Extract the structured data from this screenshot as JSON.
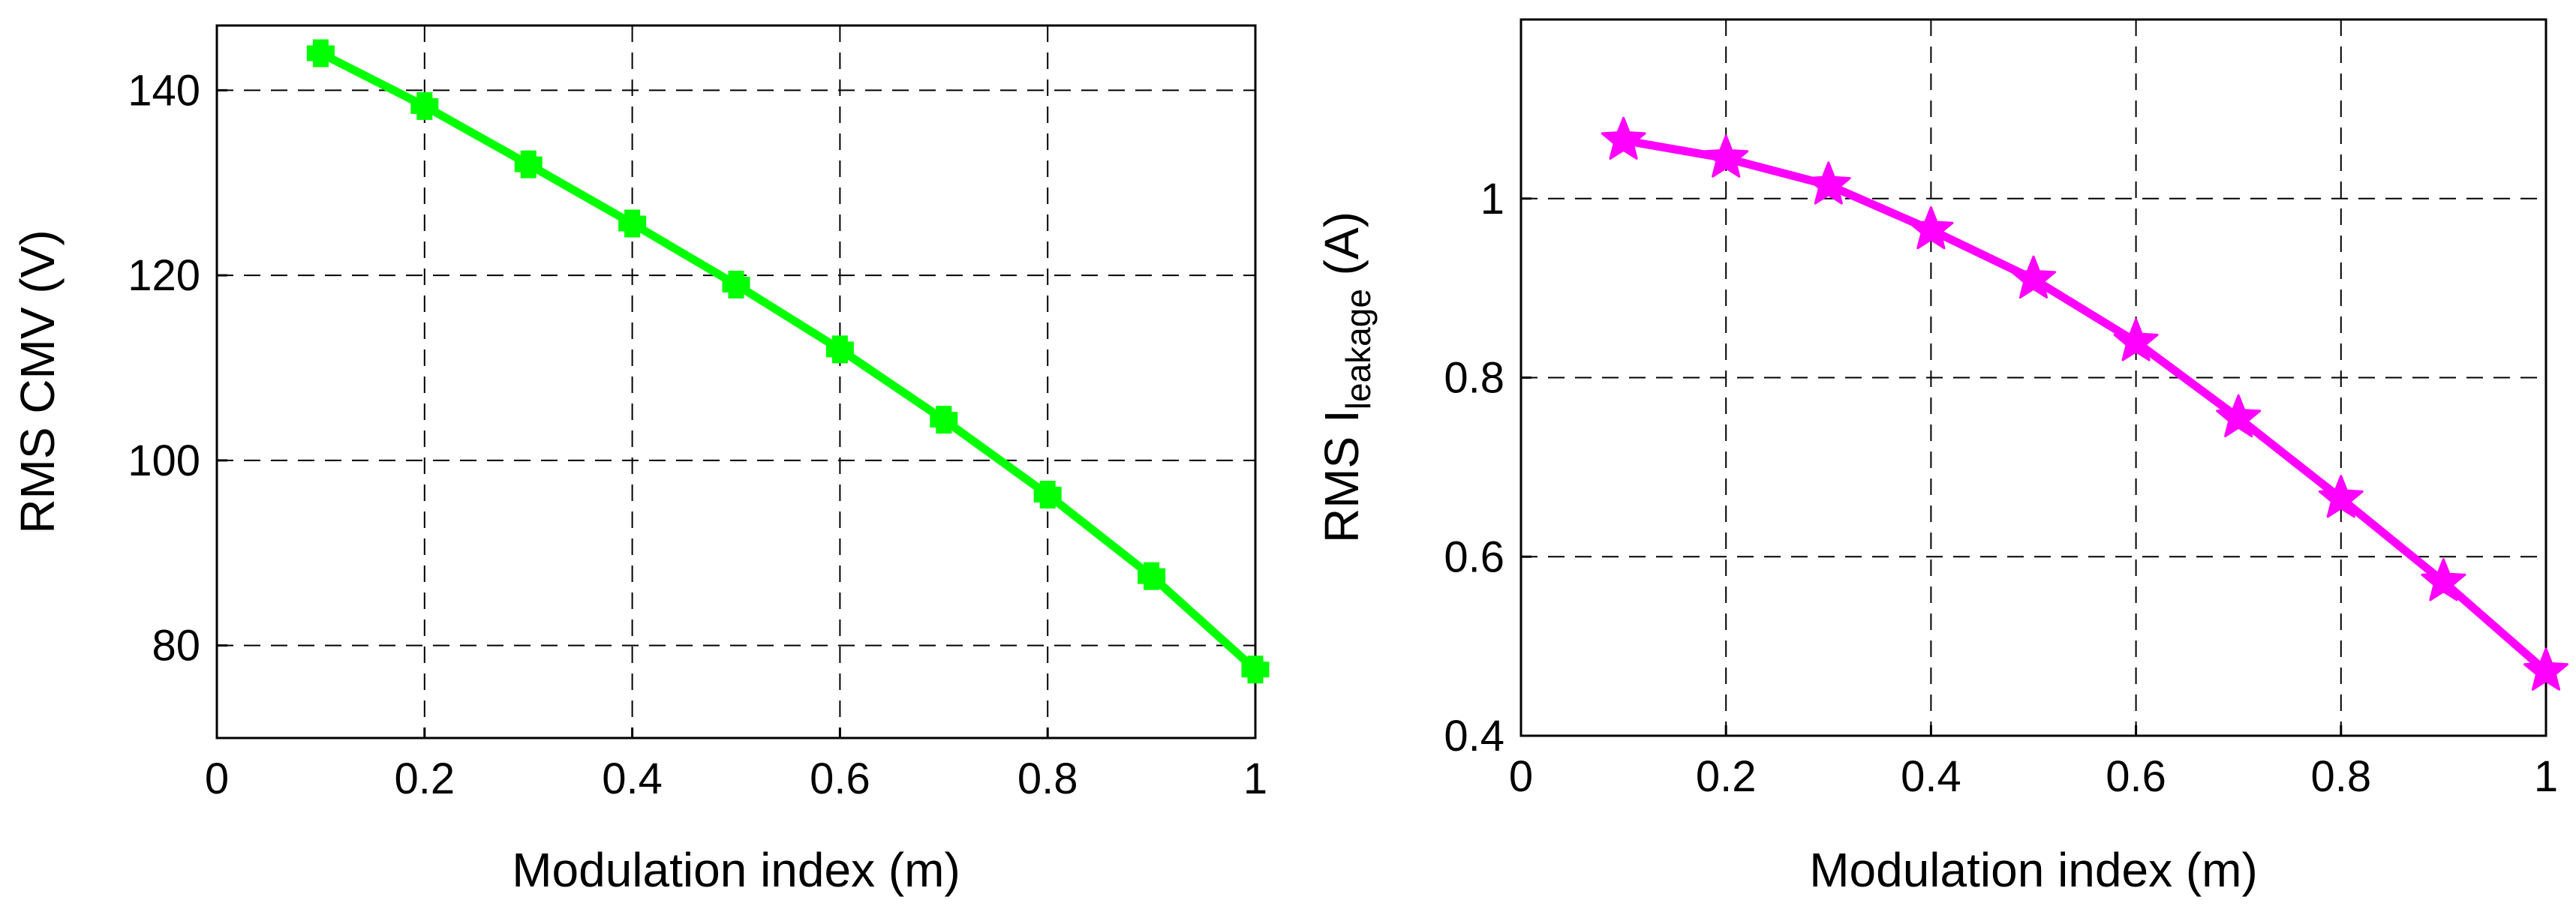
{
  "chart_data": [
    {
      "type": "line",
      "title": "",
      "xlabel": "Modulation index (m)",
      "ylabel": "RMS CMV (V)",
      "xlim": [
        0,
        1
      ],
      "ylim": [
        70,
        147
      ],
      "xticks": [
        0,
        0.2,
        0.4,
        0.6,
        0.8,
        1
      ],
      "xtick_labels": [
        "0",
        "0.2",
        "0.4",
        "0.6",
        "0.8",
        "1"
      ],
      "yticks": [
        80,
        100,
        120,
        140
      ],
      "ytick_labels": [
        "80",
        "100",
        "120",
        "140"
      ],
      "grid": true,
      "series": [
        {
          "name": "RMS CMV",
          "color": "#00ff00",
          "marker": "plus",
          "x": [
            0.1,
            0.2,
            0.3,
            0.4,
            0.5,
            0.6,
            0.7,
            0.8,
            0.9,
            1.0
          ],
          "y": [
            144,
            138.3,
            132,
            125.6,
            119,
            112,
            104.4,
            96.3,
            87.5,
            77.4
          ]
        }
      ]
    },
    {
      "type": "line",
      "title": "",
      "xlabel": "Modulation index (m)",
      "ylabel": {
        "prefix": "RMS I",
        "subscript": "leakage",
        "suffix": " (A)"
      },
      "xlim": [
        0,
        1
      ],
      "ylim": [
        0.4,
        1.2
      ],
      "xticks": [
        0,
        0.2,
        0.4,
        0.6,
        0.8,
        1
      ],
      "xtick_labels": [
        "0",
        "0.2",
        "0.4",
        "0.6",
        "0.8",
        "1"
      ],
      "yticks": [
        0.4,
        0.6,
        0.8,
        1.0
      ],
      "ytick_labels": [
        "0.4",
        "0.6",
        "0.8",
        "1"
      ],
      "grid": true,
      "series": [
        {
          "name": "RMS I_leakage",
          "color": "#ff00ff",
          "marker": "star",
          "x": [
            0.1,
            0.2,
            0.3,
            0.4,
            0.5,
            0.6,
            0.7,
            0.8,
            0.9,
            1.0
          ],
          "y": [
            1.065,
            1.045,
            1.015,
            0.965,
            0.91,
            0.84,
            0.755,
            0.665,
            0.572,
            0.472
          ]
        }
      ]
    }
  ]
}
